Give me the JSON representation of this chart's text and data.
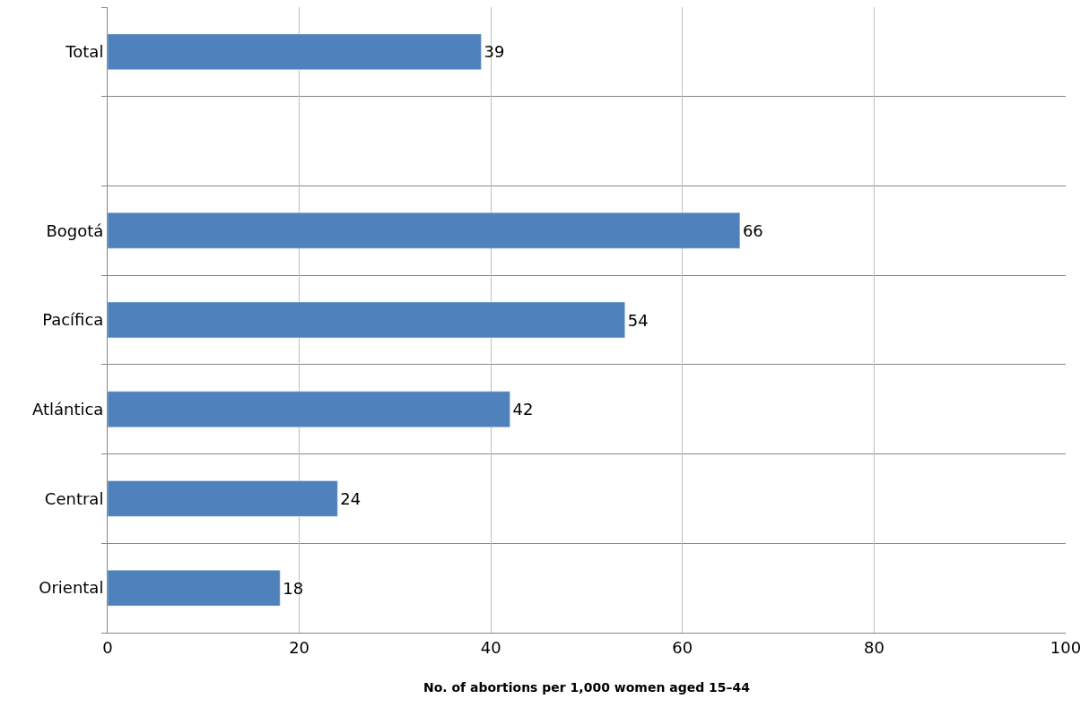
{
  "chart_data": {
    "type": "bar",
    "orientation": "horizontal",
    "categories": [
      "Total",
      null,
      "Bogotá",
      "Pacífica",
      "Atlántica",
      "Central",
      "Oriental"
    ],
    "values": [
      39,
      null,
      66,
      54,
      42,
      24,
      18
    ],
    "color": "#4f81bd",
    "xlabel": "No. of abortions per 1,000 women aged 15–44",
    "xlim": [
      0,
      100
    ],
    "xticks": [
      0,
      20,
      40,
      60,
      80,
      100
    ],
    "grid": true,
    "data_labels": true
  }
}
